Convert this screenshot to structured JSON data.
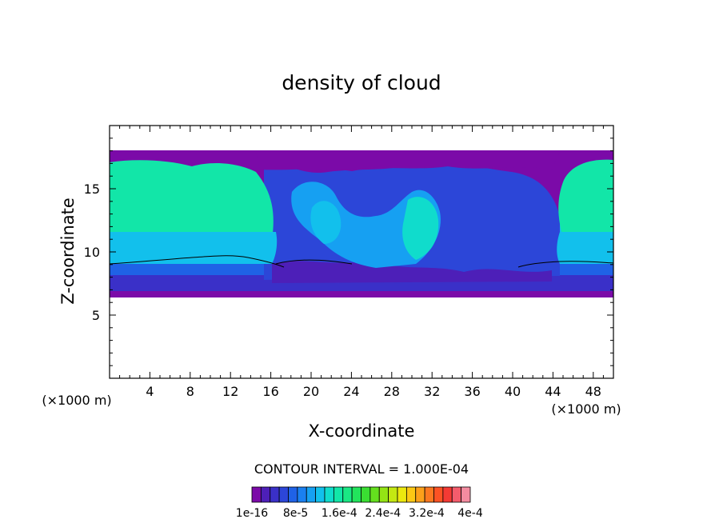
{
  "chart_data": {
    "type": "heatmap",
    "title": "density of cloud",
    "xlabel": "X-coordinate",
    "ylabel": "Z-coordinate",
    "x_unit_left": "(×1000 m)",
    "x_unit_right": "(×1000 m)",
    "xlim": [
      0,
      50
    ],
    "ylim": [
      0,
      20
    ],
    "x_ticks": [
      4,
      8,
      12,
      16,
      20,
      24,
      28,
      32,
      36,
      40,
      44,
      48
    ],
    "x_tick_labels": [
      "4",
      "8",
      "12",
      "16",
      "20",
      "24",
      "28",
      "32",
      "36",
      "40",
      "44",
      "48"
    ],
    "y_ticks": [
      5,
      10,
      15
    ],
    "y_tick_labels": [
      "5",
      "10",
      "15"
    ],
    "cloud_band_z": [
      6.5,
      18
    ],
    "contour_interval_text": "CONTOUR INTERVAL = 1.000E-04",
    "colorbar": {
      "colors": [
        "#7b0aa8",
        "#4d1fb8",
        "#3a30c8",
        "#2c46d8",
        "#1f62e6",
        "#1a80f0",
        "#16a0f2",
        "#12c0ec",
        "#10dccc",
        "#12e6a8",
        "#1ae884",
        "#22e45c",
        "#3ade32",
        "#64e01e",
        "#94e414",
        "#c4e812",
        "#ece80e",
        "#fcc814",
        "#fca01a",
        "#fc7820",
        "#fc5224",
        "#f43a34",
        "#f45c6c",
        "#f48ca0"
      ],
      "labels": [
        "1e-16",
        "8e-5",
        "1.6e-4",
        "2.4e-4",
        "3.2e-4",
        "4e-4"
      ]
    },
    "grid": false
  }
}
